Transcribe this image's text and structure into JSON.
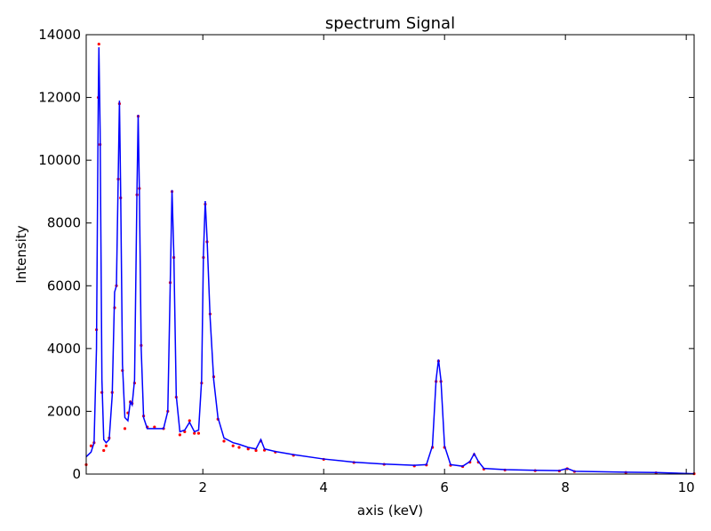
{
  "chart_data": {
    "type": "line",
    "title": "spectrum Signal",
    "x_label": "axis (keV)",
    "y_label": "Intensity",
    "x": [
      0.07,
      0.15,
      0.2,
      0.24,
      0.27,
      0.28,
      0.3,
      0.33,
      0.36,
      0.4,
      0.45,
      0.5,
      0.54,
      0.57,
      0.6,
      0.62,
      0.64,
      0.67,
      0.71,
      0.76,
      0.8,
      0.83,
      0.87,
      0.91,
      0.93,
      0.95,
      0.98,
      1.02,
      1.08,
      1.2,
      1.35,
      1.42,
      1.46,
      1.49,
      1.52,
      1.56,
      1.62,
      1.7,
      1.78,
      1.86,
      1.93,
      1.98,
      2.01,
      2.04,
      2.07,
      2.12,
      2.18,
      2.25,
      2.35,
      2.5,
      2.6,
      2.75,
      2.88,
      2.96,
      3.02,
      3.2,
      3.5,
      4.0,
      4.5,
      5.0,
      5.5,
      5.7,
      5.8,
      5.86,
      5.9,
      5.94,
      6.0,
      6.1,
      6.3,
      6.42,
      6.49,
      6.56,
      6.65,
      7.0,
      7.5,
      7.9,
      8.03,
      8.15,
      9.0,
      9.5,
      10.13
    ],
    "series": [
      {
        "color": "#ff0000",
        "marker": "dot",
        "values": [
          300,
          900,
          1000,
          4600,
          12000,
          13700,
          10500,
          2600,
          750,
          900,
          1150,
          2600,
          5300,
          6000,
          9400,
          11800,
          8800,
          3300,
          1450,
          1950,
          2300,
          2250,
          2900,
          8900,
          11400,
          9100,
          4100,
          1850,
          1500,
          1500,
          1450,
          2000,
          6100,
          9000,
          6900,
          2450,
          1250,
          1350,
          1700,
          1300,
          1300,
          2900,
          6900,
          8600,
          7400,
          5100,
          3100,
          1750,
          1050,
          900,
          850,
          800,
          750,
          1050,
          760,
          700,
          600,
          470,
          370,
          310,
          260,
          290,
          850,
          2950,
          3600,
          2950,
          850,
          280,
          240,
          380,
          620,
          380,
          160,
          130,
          110,
          100,
          170,
          80,
          50,
          40,
          10
        ]
      },
      {
        "color": "#0000ff",
        "marker": "line",
        "values": [
          550,
          700,
          1000,
          4000,
          12000,
          13600,
          11000,
          3000,
          1100,
          1000,
          1100,
          2500,
          5800,
          6000,
          9500,
          11900,
          9000,
          3500,
          1800,
          1700,
          2300,
          2200,
          3000,
          9000,
          11450,
          9000,
          4000,
          1800,
          1450,
          1450,
          1450,
          2000,
          6000,
          9050,
          7000,
          2500,
          1350,
          1400,
          1650,
          1350,
          1400,
          3000,
          7000,
          8700,
          7500,
          5000,
          3000,
          1800,
          1150,
          1000,
          950,
          850,
          800,
          1100,
          800,
          720,
          620,
          480,
          380,
          320,
          280,
          300,
          900,
          3000,
          3650,
          3000,
          900,
          300,
          250,
          400,
          650,
          400,
          180,
          140,
          120,
          110,
          180,
          90,
          60,
          50,
          10
        ]
      }
    ],
    "xlim": [
      0.07,
      10.13
    ],
    "ylim": [
      0,
      14000
    ],
    "xticks": [
      2,
      4,
      6,
      8,
      10
    ],
    "yticks": [
      0,
      2000,
      4000,
      6000,
      8000,
      10000,
      12000,
      14000
    ]
  }
}
